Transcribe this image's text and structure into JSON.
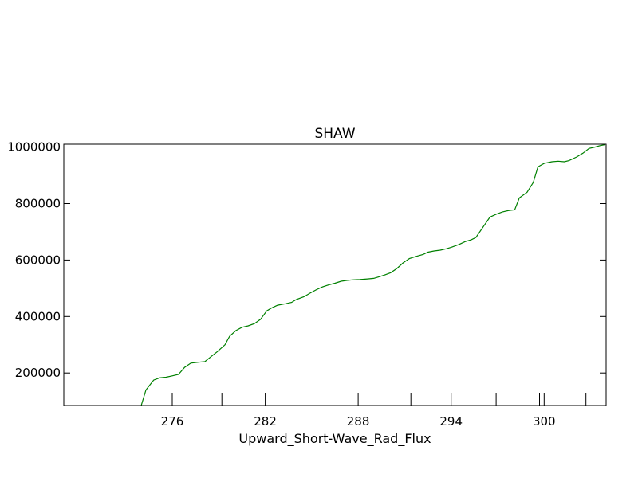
{
  "chart_data": {
    "type": "line",
    "title": "SHAW",
    "xlabel": "Upward_Short-Wave_Rad_Flux",
    "ylabel": "",
    "xlim": [
      269,
      304
    ],
    "ylim": [
      85000,
      1010000
    ],
    "grid": false,
    "x_ticks": [
      {
        "value": 276,
        "label": "276"
      },
      {
        "value": 279.2,
        "label": ""
      },
      {
        "value": 282,
        "label": "282"
      },
      {
        "value": 285.6,
        "label": ""
      },
      {
        "value": 288,
        "label": "288"
      },
      {
        "value": 291.4,
        "label": ""
      },
      {
        "value": 294,
        "label": "294"
      },
      {
        "value": 296.9,
        "label": ""
      },
      {
        "value": 299.7,
        "label": ""
      },
      {
        "value": 300,
        "label": "300"
      },
      {
        "value": 302.7,
        "label": ""
      }
    ],
    "y_ticks": [
      {
        "value": 200000,
        "label": "200000"
      },
      {
        "value": 400000,
        "label": "400000"
      },
      {
        "value": 600000,
        "label": "600000"
      },
      {
        "value": 800000,
        "label": "800000"
      },
      {
        "value": 1000000,
        "label": "1000000"
      }
    ],
    "series": [
      {
        "color": "#008000",
        "x": [
          274.0,
          274.3,
          274.8,
          275.2,
          275.6,
          276.0,
          276.4,
          276.8,
          277.2,
          277.7,
          278.1,
          278.5,
          278.9,
          279.4,
          279.7,
          280.1,
          280.5,
          280.9,
          281.3,
          281.7,
          282.1,
          282.4,
          282.8,
          283.3,
          283.7,
          284.0,
          284.5,
          284.9,
          285.3,
          285.7,
          286.1,
          286.5,
          286.9,
          287.3,
          287.7,
          288.1,
          288.6,
          289.0,
          289.3,
          289.7,
          290.1,
          290.5,
          290.9,
          291.3,
          291.7,
          292.2,
          292.5,
          292.9,
          293.3,
          293.7,
          294.0,
          294.5,
          294.9,
          295.3,
          295.6,
          296.1,
          296.5,
          296.9,
          297.3,
          297.7,
          298.1,
          298.4,
          298.9,
          299.3,
          299.6,
          300.0,
          300.5,
          300.9,
          301.3,
          301.6,
          302.1,
          302.5,
          302.9,
          303.3,
          303.6,
          303.9
        ],
        "y": [
          85000,
          140000,
          175000,
          183000,
          185000,
          190000,
          195000,
          220000,
          235000,
          238000,
          240000,
          258000,
          275000,
          300000,
          330000,
          350000,
          362000,
          367000,
          375000,
          390000,
          420000,
          430000,
          440000,
          445000,
          450000,
          460000,
          470000,
          483000,
          495000,
          505000,
          512000,
          518000,
          525000,
          528000,
          530000,
          531000,
          533000,
          535000,
          540000,
          547000,
          555000,
          570000,
          590000,
          605000,
          612000,
          620000,
          628000,
          632000,
          635000,
          640000,
          645000,
          655000,
          665000,
          672000,
          680000,
          720000,
          752000,
          762000,
          770000,
          775000,
          778000,
          820000,
          840000,
          875000,
          930000,
          942000,
          948000,
          950000,
          948000,
          952000,
          965000,
          978000,
          995000,
          1000000,
          1005000,
          1008000
        ]
      }
    ]
  }
}
